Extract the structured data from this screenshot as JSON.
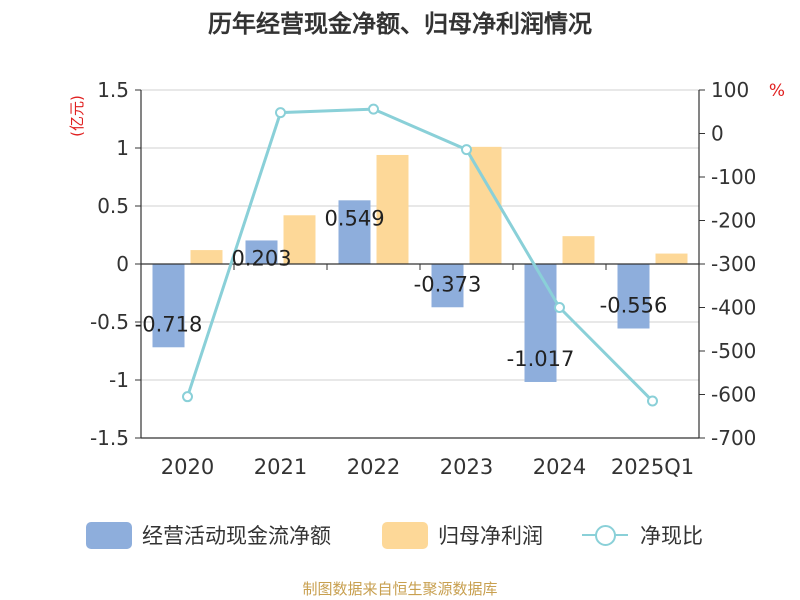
{
  "chart_data": {
    "type": "bar",
    "title": "历年经营现金净额、归母净利润情况",
    "categories": [
      "2020",
      "2021",
      "2022",
      "2023",
      "2024",
      "2025Q1"
    ],
    "series": [
      {
        "name": "经营活动现金流净额",
        "kind": "bar",
        "axis": "left",
        "color": "#8eaedc",
        "values": [
          -0.718,
          0.203,
          0.549,
          -0.373,
          -1.017,
          -0.556
        ],
        "labels": [
          "-0.718",
          "0.203",
          "0.549",
          "-0.373",
          "-1.017",
          "-0.556"
        ]
      },
      {
        "name": "归母净利润",
        "kind": "bar",
        "axis": "left",
        "color": "#fdd898",
        "values": [
          0.12,
          0.42,
          0.94,
          1.01,
          0.24,
          0.09
        ]
      },
      {
        "name": "净现比",
        "kind": "line",
        "axis": "right",
        "color": "#8ad0d8",
        "values": [
          -605,
          48,
          56,
          -37,
          -400,
          -615
        ]
      }
    ],
    "left_axis": {
      "label": "(亿元)",
      "range": [
        -1.5,
        1.5
      ],
      "ticks": [
        1.5,
        1,
        0.5,
        0,
        -0.5,
        -1,
        -1.5
      ],
      "tick_labels": [
        "1.5",
        "1",
        "0.5",
        "0",
        "-0.5",
        "-1",
        "-1.5"
      ]
    },
    "right_axis": {
      "label": "%",
      "range": [
        -700,
        100
      ],
      "ticks": [
        100,
        0,
        -100,
        -200,
        -300,
        -400,
        -500,
        -600,
        -700
      ],
      "tick_labels": [
        "100",
        "0",
        "-100",
        "-200",
        "-300",
        "-400",
        "-500",
        "-600",
        "-700"
      ]
    },
    "grid": true,
    "legend_position": "bottom"
  },
  "source": "制图数据来自恒生聚源数据库"
}
